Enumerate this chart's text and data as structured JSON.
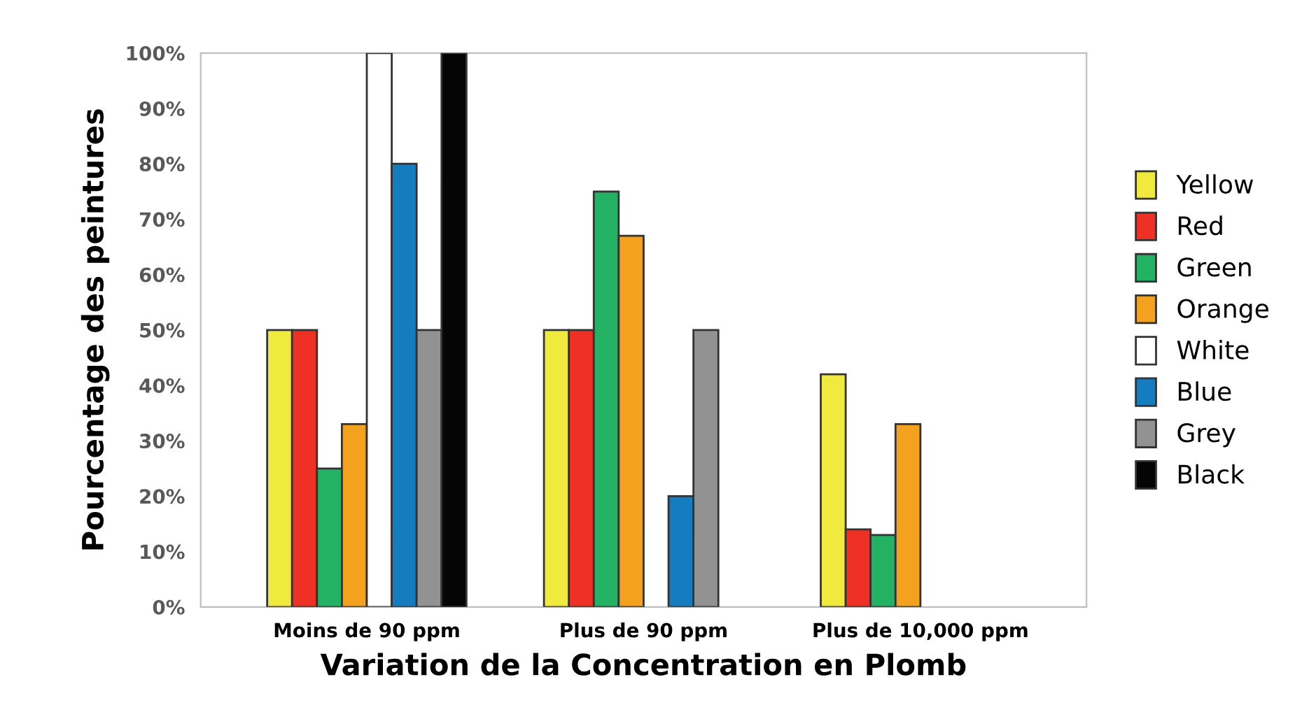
{
  "chart_data": {
    "type": "bar",
    "xlabel": "Variation de la Concentration en Plomb",
    "ylabel": "Pourcentage des peintures",
    "categories": [
      "Moins de 90 ppm",
      "Plus de 90 ppm",
      "Plus de 10,000 ppm"
    ],
    "series": [
      {
        "name": "Yellow",
        "color": "#f0e93e",
        "values": [
          50,
          50,
          42
        ]
      },
      {
        "name": "Red",
        "color": "#ee3124",
        "values": [
          50,
          50,
          14
        ]
      },
      {
        "name": "Green",
        "color": "#23b163",
        "values": [
          25,
          75,
          13
        ]
      },
      {
        "name": "Orange",
        "color": "#f4a11f",
        "values": [
          33,
          67,
          33
        ]
      },
      {
        "name": "White",
        "color": "#ffffff",
        "values": [
          100,
          null,
          null
        ]
      },
      {
        "name": "Blue",
        "color": "#167cc0",
        "values": [
          80,
          20,
          null
        ]
      },
      {
        "name": "Grey",
        "color": "#929292",
        "values": [
          50,
          50,
          null
        ]
      },
      {
        "name": "Black",
        "color": "#050505",
        "values": [
          100,
          null,
          null
        ]
      }
    ],
    "ylim": [
      0,
      100
    ],
    "yticks": [
      {
        "value": 0,
        "label": "0%"
      },
      {
        "value": 10,
        "label": "10%"
      },
      {
        "value": 20,
        "label": "20%"
      },
      {
        "value": 30,
        "label": "30%"
      },
      {
        "value": 40,
        "label": "40%"
      },
      {
        "value": 50,
        "label": "50%"
      },
      {
        "value": 60,
        "label": "60%"
      },
      {
        "value": 70,
        "label": "70%"
      },
      {
        "value": 80,
        "label": "80%"
      },
      {
        "value": 90,
        "label": "90%"
      },
      {
        "value": 100,
        "label": "100%"
      }
    ],
    "grid": false,
    "legend": "right"
  }
}
